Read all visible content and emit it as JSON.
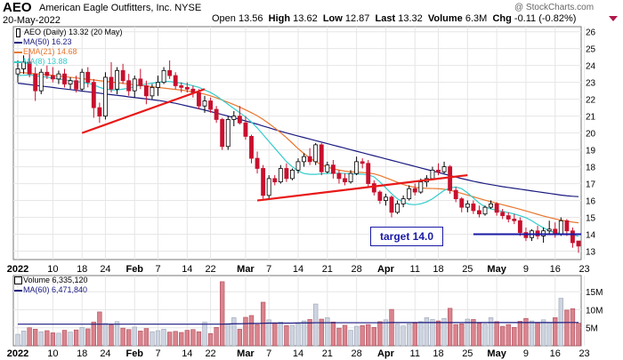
{
  "header": {
    "symbol": "AEO",
    "company": "American Eagle Outfitters, Inc. NYSE",
    "date": "20-May-2022",
    "open_label": "Open",
    "open": "13.56",
    "high_label": "High",
    "high": "13.62",
    "low_label": "Low",
    "low": "12.87",
    "last_label": "Last",
    "last": "13.32",
    "volume_label": "Volume",
    "volume": "6.3M",
    "chg_label": "Chg",
    "chg": "-0.11 (-0.82%)",
    "watermark": "@ StockCharts.com"
  },
  "legend_price": [
    {
      "text": "AEO (Daily) 13.32 (20 May)",
      "color": "#000000",
      "key": "candle"
    },
    {
      "text": "MA(50) 16.23",
      "color": "#1a1a80",
      "key": "line"
    },
    {
      "text": "EMA(21) 14.68",
      "color": "#e8772e",
      "key": "line"
    },
    {
      "text": "MA(8) 13.88",
      "color": "#33cccc",
      "key": "line"
    }
  ],
  "legend_volume": [
    {
      "text": "Volume 6,335,120",
      "color": "#000000",
      "key": "box"
    },
    {
      "text": "MA(60) 6,471,840",
      "color": "#1a1a80",
      "key": "line"
    }
  ],
  "annotation": {
    "text": "target 14.0",
    "color": "#1a1aa6"
  },
  "colors": {
    "up": "#000000",
    "down": "#c8102e",
    "vol_up": "#ced4e0",
    "vol_down": "#d9848e",
    "grid": "#e6e6e6",
    "trendline": "#e81818",
    "target_line": "#1a1aa6"
  },
  "chart_data": {
    "type": "candlestick",
    "price_axis": {
      "min": 12.5,
      "max": 26.3,
      "ticks": [
        13,
        14,
        15,
        16,
        17,
        18,
        19,
        20,
        21,
        22,
        23,
        24,
        25,
        26
      ]
    },
    "volume_axis": {
      "min": 0,
      "max": 19500000,
      "ticks": [
        5000000,
        10000000,
        15000000
      ],
      "tick_labels": [
        "5M",
        "10M",
        "15M"
      ]
    },
    "x_labels": [
      {
        "i": 0,
        "t": "2022",
        "bold": true
      },
      {
        "i": 6,
        "t": "10"
      },
      {
        "i": 11,
        "t": "18"
      },
      {
        "i": 15,
        "t": "24"
      },
      {
        "i": 20,
        "t": "Feb",
        "bold": true
      },
      {
        "i": 24,
        "t": "7"
      },
      {
        "i": 29,
        "t": "14"
      },
      {
        "i": 33,
        "t": "22"
      },
      {
        "i": 39,
        "t": "Mar",
        "bold": true
      },
      {
        "i": 43,
        "t": "7"
      },
      {
        "i": 48,
        "t": "14"
      },
      {
        "i": 53,
        "t": "21"
      },
      {
        "i": 58,
        "t": "28"
      },
      {
        "i": 63,
        "t": "Apr",
        "bold": true
      },
      {
        "i": 68,
        "t": "11"
      },
      {
        "i": 72,
        "t": "18"
      },
      {
        "i": 77,
        "t": "25"
      },
      {
        "i": 82,
        "t": "May",
        "bold": true
      },
      {
        "i": 87,
        "t": "9"
      },
      {
        "i": 92,
        "t": "16"
      },
      {
        "i": 97,
        "t": "23"
      }
    ],
    "candles": [
      [
        23.5,
        24.3,
        23.0,
        23.8
      ],
      [
        23.8,
        24.6,
        23.5,
        24.2
      ],
      [
        24.2,
        25.0,
        23.3,
        23.5
      ],
      [
        23.5,
        23.9,
        21.9,
        22.5
      ],
      [
        22.5,
        23.8,
        22.3,
        23.6
      ],
      [
        23.6,
        24.0,
        23.2,
        23.4
      ],
      [
        23.4,
        23.9,
        23.0,
        23.2
      ],
      [
        23.2,
        23.7,
        22.9,
        23.5
      ],
      [
        23.5,
        23.8,
        22.7,
        22.9
      ],
      [
        22.9,
        23.3,
        22.6,
        23.1
      ],
      [
        23.1,
        23.4,
        22.4,
        22.6
      ],
      [
        22.6,
        23.8,
        22.5,
        23.6
      ],
      [
        23.6,
        23.9,
        22.7,
        23.0
      ],
      [
        23.0,
        23.2,
        20.9,
        21.5
      ],
      [
        21.5,
        21.8,
        20.6,
        21.0
      ],
      [
        21.0,
        23.6,
        20.8,
        23.3
      ],
      [
        23.3,
        24.2,
        22.4,
        22.6
      ],
      [
        22.6,
        23.9,
        22.3,
        23.7
      ],
      [
        23.7,
        24.1,
        22.9,
        23.1
      ],
      [
        23.1,
        23.5,
        22.2,
        22.5
      ],
      [
        22.5,
        23.4,
        22.1,
        23.2
      ],
      [
        23.2,
        23.8,
        22.6,
        22.8
      ],
      [
        22.8,
        23.1,
        21.7,
        22.2
      ],
      [
        22.2,
        22.9,
        22.0,
        22.7
      ],
      [
        22.7,
        23.4,
        22.2,
        23.0
      ],
      [
        23.0,
        23.9,
        22.9,
        23.7
      ],
      [
        23.7,
        24.3,
        23.2,
        23.4
      ],
      [
        23.4,
        23.6,
        22.6,
        22.8
      ],
      [
        22.8,
        23.0,
        22.4,
        22.7
      ],
      [
        22.7,
        23.0,
        22.4,
        22.6
      ],
      [
        22.6,
        22.8,
        22.1,
        22.4
      ],
      [
        22.4,
        22.6,
        21.4,
        21.6
      ],
      [
        21.6,
        22.2,
        21.2,
        21.9
      ],
      [
        21.9,
        22.1,
        21.2,
        21.4
      ],
      [
        21.4,
        21.6,
        20.6,
        20.8
      ],
      [
        20.8,
        20.9,
        19.0,
        19.2
      ],
      [
        19.2,
        21.0,
        19.0,
        20.8
      ],
      [
        20.8,
        21.3,
        20.4,
        21.0
      ],
      [
        21.0,
        21.6,
        20.5,
        20.6
      ],
      [
        20.6,
        21.0,
        19.6,
        19.8
      ],
      [
        19.8,
        19.9,
        18.2,
        18.5
      ],
      [
        18.5,
        18.9,
        17.6,
        17.9
      ],
      [
        17.9,
        18.1,
        16.1,
        16.3
      ],
      [
        16.3,
        17.5,
        16.1,
        17.3
      ],
      [
        17.3,
        17.5,
        16.9,
        17.1
      ],
      [
        17.1,
        18.1,
        17.0,
        17.9
      ],
      [
        17.9,
        18.2,
        17.1,
        17.3
      ],
      [
        17.3,
        17.9,
        17.2,
        17.8
      ],
      [
        17.8,
        18.5,
        17.6,
        18.3
      ],
      [
        18.3,
        18.8,
        18.0,
        18.6
      ],
      [
        18.6,
        19.1,
        18.1,
        18.3
      ],
      [
        18.3,
        19.4,
        18.1,
        19.3
      ],
      [
        19.3,
        19.4,
        17.5,
        17.7
      ],
      [
        17.7,
        18.3,
        17.6,
        18.1
      ],
      [
        18.1,
        18.4,
        17.3,
        17.6
      ],
      [
        17.6,
        17.8,
        17.0,
        17.3
      ],
      [
        17.3,
        17.6,
        16.9,
        17.1
      ],
      [
        17.1,
        17.8,
        17.0,
        17.6
      ],
      [
        17.6,
        18.6,
        17.5,
        18.3
      ],
      [
        18.3,
        18.5,
        17.9,
        18.2
      ],
      [
        18.2,
        18.4,
        16.8,
        17.0
      ],
      [
        17.0,
        17.2,
        16.3,
        16.5
      ],
      [
        16.5,
        16.6,
        15.8,
        16.0
      ],
      [
        16.0,
        16.4,
        15.7,
        16.2
      ],
      [
        16.2,
        16.3,
        15.0,
        15.3
      ],
      [
        15.3,
        16.0,
        15.2,
        15.8
      ],
      [
        15.8,
        16.3,
        15.6,
        16.1
      ],
      [
        16.1,
        16.9,
        16.0,
        16.7
      ],
      [
        16.7,
        17.0,
        16.3,
        16.5
      ],
      [
        16.5,
        17.3,
        16.4,
        17.1
      ],
      [
        17.1,
        17.5,
        16.8,
        17.3
      ],
      [
        17.3,
        18.0,
        17.2,
        17.8
      ],
      [
        17.8,
        18.2,
        17.5,
        17.7
      ],
      [
        17.7,
        18.3,
        17.6,
        18.0
      ],
      [
        18.0,
        18.1,
        16.4,
        16.6
      ],
      [
        16.6,
        16.8,
        15.9,
        16.1
      ],
      [
        16.1,
        16.2,
        15.3,
        15.6
      ],
      [
        15.6,
        16.0,
        15.3,
        15.8
      ],
      [
        15.8,
        16.0,
        15.2,
        15.4
      ],
      [
        15.4,
        15.7,
        15.0,
        15.2
      ],
      [
        15.2,
        15.7,
        15.1,
        15.6
      ],
      [
        15.6,
        16.0,
        15.5,
        15.8
      ],
      [
        15.8,
        15.9,
        15.1,
        15.3
      ],
      [
        15.3,
        15.5,
        14.9,
        15.1
      ],
      [
        15.1,
        15.3,
        14.7,
        14.9
      ],
      [
        14.9,
        15.2,
        14.6,
        14.8
      ],
      [
        14.8,
        15.0,
        13.9,
        14.1
      ],
      [
        14.1,
        14.4,
        13.6,
        13.8
      ],
      [
        13.8,
        14.3,
        13.6,
        14.2
      ],
      [
        14.2,
        14.5,
        13.7,
        13.9
      ],
      [
        13.9,
        14.4,
        13.5,
        14.2
      ],
      [
        14.2,
        14.8,
        14.0,
        14.3
      ],
      [
        14.3,
        14.7,
        13.8,
        14.0
      ],
      [
        14.0,
        15.0,
        13.9,
        14.8
      ],
      [
        14.8,
        14.9,
        13.9,
        14.2
      ],
      [
        14.2,
        14.4,
        13.2,
        13.5
      ],
      [
        13.6,
        13.6,
        12.9,
        13.3
      ]
    ],
    "volume_m": [
      3.2,
      4.1,
      5.0,
      4.6,
      3.9,
      4.2,
      3.6,
      3.5,
      4.3,
      3.8,
      4.4,
      5.1,
      4.7,
      6.6,
      9.4,
      6.2,
      5.8,
      6.7,
      4.9,
      4.5,
      5.2,
      4.1,
      4.8,
      3.9,
      4.2,
      4.6,
      3.8,
      4.0,
      3.7,
      4.3,
      4.5,
      3.9,
      6.6,
      3.4,
      5.1,
      17.8,
      6.1,
      7.8,
      4.6,
      7.9,
      8.4,
      5.9,
      12.1,
      7.2,
      6.4,
      6.6,
      5.6,
      5.7,
      6.1,
      6.9,
      7.3,
      11.6,
      7.4,
      7.8,
      6.6,
      4.9,
      5.7,
      4.3,
      5.4,
      5.6,
      5.9,
      5.1,
      6.7,
      7.2,
      10.1,
      6.0,
      5.5,
      6.1,
      6.3,
      6.7,
      7.8,
      7.3,
      6.9,
      7.6,
      10.4,
      5.9,
      6.1,
      7.4,
      7.3,
      6.2,
      6.0,
      7.8,
      6.7,
      5.4,
      5.9,
      5.1,
      6.8,
      7.6,
      6.9,
      6.5,
      7.2,
      6.5,
      7.8,
      13.2,
      9.9,
      10.3,
      6.3
    ],
    "ma50": [
      22.95,
      22.91,
      22.87,
      22.82,
      22.78,
      22.74,
      22.7,
      22.65,
      22.61,
      22.57,
      22.53,
      22.48,
      22.44,
      22.4,
      22.36,
      22.31,
      22.27,
      22.23,
      22.19,
      22.14,
      22.1,
      22.06,
      22.02,
      21.97,
      21.93,
      21.88,
      21.82,
      21.76,
      21.68,
      21.6,
      21.52,
      21.44,
      21.36,
      21.27,
      21.18,
      21.09,
      21.0,
      20.91,
      20.81,
      20.71,
      20.62,
      20.52,
      20.41,
      20.31,
      20.2,
      20.1,
      20.0,
      19.91,
      19.82,
      19.73,
      19.64,
      19.55,
      19.46,
      19.37,
      19.28,
      19.19,
      19.1,
      19.01,
      18.92,
      18.83,
      18.74,
      18.65,
      18.56,
      18.47,
      18.38,
      18.29,
      18.2,
      18.11,
      18.02,
      17.93,
      17.84,
      17.75,
      17.66,
      17.57,
      17.48,
      17.39,
      17.3,
      17.22,
      17.14,
      17.07,
      17.0,
      16.94,
      16.88,
      16.82,
      16.77,
      16.72,
      16.67,
      16.62,
      16.57,
      16.52,
      16.47,
      16.42,
      16.37,
      16.32,
      16.28,
      16.25,
      16.23
    ],
    "ema21": [
      23.6,
      23.57,
      23.54,
      23.51,
      23.48,
      23.45,
      23.42,
      23.38,
      23.34,
      23.3,
      23.26,
      23.22,
      23.18,
      23.14,
      23.1,
      23.06,
      23.02,
      22.98,
      22.94,
      22.9,
      22.86,
      22.82,
      22.78,
      22.74,
      22.7,
      22.66,
      22.62,
      22.58,
      22.54,
      22.49,
      22.44,
      22.38,
      22.3,
      22.2,
      22.08,
      21.95,
      21.82,
      21.68,
      21.53,
      21.37,
      21.2,
      21.02,
      20.8,
      20.56,
      20.3,
      20.02,
      19.72,
      19.4,
      19.07,
      18.78,
      18.52,
      18.3,
      18.12,
      17.98,
      17.88,
      17.8,
      17.74,
      17.7,
      17.68,
      17.66,
      17.63,
      17.58,
      17.48,
      17.35,
      17.22,
      17.08,
      16.95,
      16.85,
      16.78,
      16.74,
      16.72,
      16.71,
      16.7,
      16.67,
      16.6,
      16.52,
      16.42,
      16.32,
      16.22,
      16.12,
      16.02,
      15.93,
      15.84,
      15.75,
      15.66,
      15.57,
      15.48,
      15.38,
      15.28,
      15.18,
      15.08,
      14.99,
      14.91,
      14.84,
      14.78,
      14.72,
      14.68
    ],
    "ma8": [
      23.4,
      23.42,
      23.45,
      23.4,
      23.35,
      23.3,
      23.25,
      23.2,
      23.15,
      23.1,
      23.05,
      23.0,
      22.95,
      22.85,
      22.7,
      22.6,
      22.55,
      22.55,
      22.6,
      22.65,
      22.75,
      22.85,
      22.9,
      22.95,
      23.0,
      23.05,
      23.05,
      23.0,
      22.95,
      22.88,
      22.8,
      22.7,
      22.55,
      22.4,
      22.2,
      21.95,
      21.7,
      21.45,
      21.2,
      20.95,
      20.65,
      20.3,
      19.9,
      19.5,
      19.1,
      18.7,
      18.3,
      18.0,
      17.75,
      17.6,
      17.55,
      17.55,
      17.58,
      17.6,
      17.62,
      17.62,
      17.6,
      17.58,
      17.57,
      17.56,
      17.52,
      17.4,
      17.1,
      16.75,
      16.4,
      16.1,
      15.9,
      15.78,
      15.75,
      15.8,
      15.92,
      16.1,
      16.35,
      16.6,
      16.75,
      16.8,
      16.7,
      16.45,
      16.15,
      15.85,
      15.62,
      15.5,
      15.42,
      15.35,
      15.28,
      15.2,
      15.1,
      14.98,
      14.8,
      14.58,
      14.38,
      14.2,
      14.1,
      14.05,
      14.0,
      13.95,
      13.88
    ],
    "vol_ma60": [
      6.0,
      6.0,
      6.0,
      6.0,
      6.0,
      6.0,
      6.0,
      6.0,
      6.0,
      6.0,
      6.0,
      6.0,
      6.0,
      6.0,
      6.0,
      6.0,
      6.0,
      6.0,
      6.0,
      6.0,
      6.0,
      6.0,
      6.0,
      6.0,
      6.0,
      6.0,
      6.0,
      6.0,
      6.0,
      6.0,
      6.0,
      6.0,
      6.0,
      6.0,
      6.0,
      6.0,
      6.05,
      6.1,
      6.1,
      6.15,
      6.2,
      6.2,
      6.25,
      6.3,
      6.3,
      6.3,
      6.3,
      6.3,
      6.35,
      6.35,
      6.35,
      6.4,
      6.4,
      6.4,
      6.4,
      6.4,
      6.4,
      6.4,
      6.4,
      6.4,
      6.4,
      6.4,
      6.4,
      6.4,
      6.45,
      6.45,
      6.45,
      6.45,
      6.45,
      6.45,
      6.45,
      6.45,
      6.45,
      6.45,
      6.45,
      6.45,
      6.45,
      6.45,
      6.45,
      6.45,
      6.45,
      6.45,
      6.45,
      6.45,
      6.45,
      6.45,
      6.45,
      6.45,
      6.45,
      6.45,
      6.45,
      6.45,
      6.45,
      6.45,
      6.46,
      6.47,
      6.47
    ],
    "trendlines": [
      {
        "i1": 11,
        "p1": 20.0,
        "i2": 32,
        "p2": 22.6
      },
      {
        "i1": 41,
        "p1": 16.0,
        "i2": 77,
        "p2": 17.5
      }
    ],
    "target": {
      "price": 14.0,
      "i_start": 78
    }
  }
}
